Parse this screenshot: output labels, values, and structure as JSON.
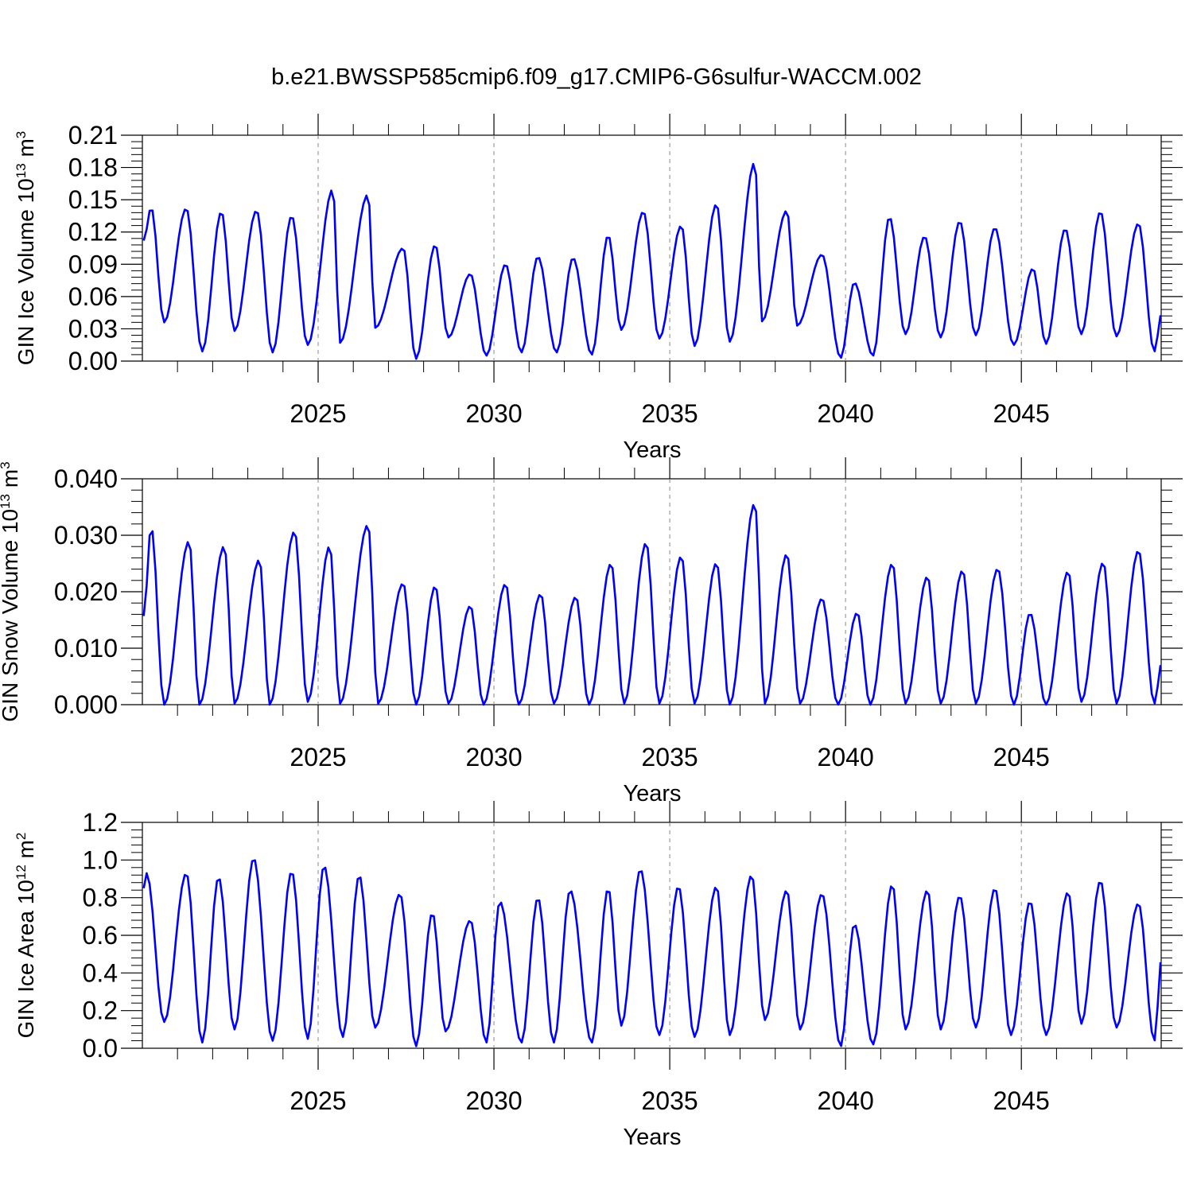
{
  "title": "b.e21.BWSSP585cmip6.f09_g17.CMIP6-G6sulfur-WACCM.002",
  "chart_data": [
    {
      "type": "line",
      "ylabel": "GIN Ice Volume 10",
      "ylabel_sup": "13",
      "ylabel_unit": "m",
      "ylabel_unit_sup": "3",
      "xlabel": "Years",
      "xlim": [
        2020.04,
        2049.0
      ],
      "ylim": [
        0,
        0.21
      ],
      "yticks": [
        "0.00",
        "0.03",
        "0.06",
        "0.09",
        "0.12",
        "0.15",
        "0.18",
        "0.21"
      ],
      "ytick_values": [
        0,
        0.03,
        0.06,
        0.09,
        0.12,
        0.15,
        0.18,
        0.21
      ],
      "xticks": [
        "2025",
        "2030",
        "2035",
        "2040",
        "2045"
      ],
      "xtick_values": [
        2025,
        2030,
        2035,
        2040,
        2045
      ],
      "grid": "vertical dashed at major x ticks",
      "color": "#0000ff",
      "series": [
        {
          "peaks": [
            [
              2020.25,
              0.143
            ],
            [
              2021.25,
              0.142
            ],
            [
              2022.25,
              0.139
            ],
            [
              2023.25,
              0.14
            ],
            [
              2024.25,
              0.135
            ],
            [
              2025.42,
              0.16
            ],
            [
              2026.42,
              0.155
            ],
            [
              2027.42,
              0.105
            ],
            [
              2028.33,
              0.108
            ],
            [
              2029.33,
              0.081
            ],
            [
              2030.33,
              0.09
            ],
            [
              2031.25,
              0.097
            ],
            [
              2032.25,
              0.096
            ],
            [
              2033.25,
              0.117
            ],
            [
              2034.25,
              0.139
            ],
            [
              2035.33,
              0.126
            ],
            [
              2036.33,
              0.146
            ],
            [
              2037.42,
              0.185
            ],
            [
              2038.33,
              0.14
            ],
            [
              2039.33,
              0.099
            ],
            [
              2040.25,
              0.073
            ],
            [
              2041.25,
              0.134
            ],
            [
              2042.25,
              0.116
            ],
            [
              2043.25,
              0.13
            ],
            [
              2044.25,
              0.124
            ],
            [
              2045.33,
              0.086
            ],
            [
              2046.25,
              0.123
            ],
            [
              2047.25,
              0.139
            ],
            [
              2048.33,
              0.128
            ]
          ],
          "troughs": [
            [
              2020.62,
              0.036
            ],
            [
              2021.7,
              0.009
            ],
            [
              2022.62,
              0.028
            ],
            [
              2023.7,
              0.008
            ],
            [
              2024.7,
              0.015
            ],
            [
              2025.62,
              0.017
            ],
            [
              2026.62,
              0.031
            ],
            [
              2027.78,
              0.002
            ],
            [
              2028.7,
              0.022
            ],
            [
              2029.78,
              0.005
            ],
            [
              2030.78,
              0.008
            ],
            [
              2031.78,
              0.008
            ],
            [
              2032.78,
              0.006
            ],
            [
              2033.62,
              0.029
            ],
            [
              2034.7,
              0.021
            ],
            [
              2035.7,
              0.014
            ],
            [
              2036.7,
              0.018
            ],
            [
              2037.62,
              0.037
            ],
            [
              2038.62,
              0.033
            ],
            [
              2039.86,
              0.003
            ],
            [
              2040.78,
              0.005
            ],
            [
              2041.7,
              0.025
            ],
            [
              2042.7,
              0.022
            ],
            [
              2043.7,
              0.024
            ],
            [
              2044.78,
              0.015
            ],
            [
              2045.7,
              0.016
            ],
            [
              2046.7,
              0.025
            ],
            [
              2047.7,
              0.023
            ],
            [
              2048.78,
              0.009
            ]
          ],
          "start": [
            2020.04,
            0.112
          ],
          "end": [
            2049.0,
            0.046
          ]
        }
      ]
    },
    {
      "type": "line",
      "ylabel": "GIN Snow Volume 10",
      "ylabel_sup": "13",
      "ylabel_unit": "m",
      "ylabel_unit_sup": "3",
      "xlabel": "Years",
      "xlim": [
        2020.04,
        2049.0
      ],
      "ylim": [
        0,
        0.04
      ],
      "yticks": [
        "0.000",
        "0.010",
        "0.020",
        "0.030",
        "0.040"
      ],
      "ytick_values": [
        0,
        0.01,
        0.02,
        0.03,
        0.04
      ],
      "xticks": [
        "2025",
        "2030",
        "2035",
        "2040",
        "2045"
      ],
      "xtick_values": [
        2025,
        2030,
        2035,
        2040,
        2045
      ],
      "grid": "vertical dashed at major x ticks",
      "color": "#0000ff",
      "series": [
        {
          "peaks": [
            [
              2020.25,
              0.0316
            ],
            [
              2021.33,
              0.029
            ],
            [
              2022.33,
              0.0281
            ],
            [
              2023.33,
              0.0257
            ],
            [
              2024.33,
              0.0307
            ],
            [
              2025.33,
              0.0281
            ],
            [
              2026.42,
              0.0319
            ],
            [
              2027.42,
              0.0215
            ],
            [
              2028.33,
              0.021
            ],
            [
              2029.33,
              0.0175
            ],
            [
              2030.33,
              0.0214
            ],
            [
              2031.33,
              0.0196
            ],
            [
              2032.33,
              0.0191
            ],
            [
              2033.33,
              0.025
            ],
            [
              2034.33,
              0.0287
            ],
            [
              2035.33,
              0.0263
            ],
            [
              2036.33,
              0.0251
            ],
            [
              2037.42,
              0.0357
            ],
            [
              2038.33,
              0.0267
            ],
            [
              2039.33,
              0.0188
            ],
            [
              2040.33,
              0.0163
            ],
            [
              2041.33,
              0.025
            ],
            [
              2042.33,
              0.0227
            ],
            [
              2043.33,
              0.0238
            ],
            [
              2044.33,
              0.0241
            ],
            [
              2045.25,
              0.0162
            ],
            [
              2046.33,
              0.0236
            ],
            [
              2047.33,
              0.0252
            ],
            [
              2048.33,
              0.0273
            ]
          ],
          "troughs": [
            [
              2020.62,
              0.0
            ],
            [
              2021.62,
              0.0
            ],
            [
              2022.62,
              0.0002
            ],
            [
              2023.62,
              0.0
            ],
            [
              2024.7,
              0.0005
            ],
            [
              2025.62,
              0.0002
            ],
            [
              2026.7,
              0.0002
            ],
            [
              2027.78,
              0.0
            ],
            [
              2028.7,
              0.0002
            ],
            [
              2029.7,
              0.0
            ],
            [
              2030.7,
              0.0
            ],
            [
              2031.7,
              0.0002
            ],
            [
              2032.7,
              0.0
            ],
            [
              2033.7,
              0.0002
            ],
            [
              2034.7,
              0.0002
            ],
            [
              2035.7,
              0.0002
            ],
            [
              2036.7,
              0.0
            ],
            [
              2037.7,
              0.0002
            ],
            [
              2038.7,
              0.0002
            ],
            [
              2039.78,
              0.0
            ],
            [
              2040.7,
              0.0
            ],
            [
              2041.7,
              0.0002
            ],
            [
              2042.7,
              0.0002
            ],
            [
              2043.7,
              0.0002
            ],
            [
              2044.78,
              0.0
            ],
            [
              2045.7,
              0.0
            ],
            [
              2046.7,
              0.0005
            ],
            [
              2047.7,
              0.0002
            ],
            [
              2048.78,
              0.0002
            ]
          ],
          "start": [
            2020.04,
            0.0157
          ],
          "end": [
            2049.0,
            0.0077
          ]
        }
      ]
    },
    {
      "type": "line",
      "ylabel": "GIN Ice Area 10",
      "ylabel_sup": "12",
      "ylabel_unit": "m",
      "ylabel_unit_sup": "2",
      "xlabel": "Years",
      "xlim": [
        2020.04,
        2049.0
      ],
      "ylim": [
        0,
        1.2
      ],
      "yticks": [
        "0.0",
        "0.2",
        "0.4",
        "0.6",
        "0.8",
        "1.0",
        "1.2"
      ],
      "ytick_values": [
        0,
        0.2,
        0.4,
        0.6,
        0.8,
        1.0,
        1.2
      ],
      "xticks": [
        "2025",
        "2030",
        "2035",
        "2040",
        "2045"
      ],
      "xtick_values": [
        2025,
        2030,
        2035,
        2040,
        2045
      ],
      "grid": "vertical dashed at major x ticks",
      "color": "#0000ff",
      "series": [
        {
          "peaks": [
            [
              2020.12,
              0.93
            ],
            [
              2021.25,
              0.93
            ],
            [
              2022.17,
              0.91
            ],
            [
              2023.17,
              1.01
            ],
            [
              2024.25,
              0.94
            ],
            [
              2025.17,
              0.97
            ],
            [
              2026.17,
              0.92
            ],
            [
              2027.33,
              0.82
            ],
            [
              2028.25,
              0.72
            ],
            [
              2029.33,
              0.68
            ],
            [
              2030.17,
              0.78
            ],
            [
              2031.25,
              0.8
            ],
            [
              2032.17,
              0.84
            ],
            [
              2033.25,
              0.85
            ],
            [
              2034.17,
              0.95
            ],
            [
              2035.25,
              0.86
            ],
            [
              2036.33,
              0.86
            ],
            [
              2037.33,
              0.92
            ],
            [
              2038.33,
              0.84
            ],
            [
              2039.33,
              0.82
            ],
            [
              2040.25,
              0.66
            ],
            [
              2041.33,
              0.87
            ],
            [
              2042.33,
              0.84
            ],
            [
              2043.25,
              0.81
            ],
            [
              2044.25,
              0.85
            ],
            [
              2045.25,
              0.78
            ],
            [
              2046.33,
              0.83
            ],
            [
              2047.25,
              0.89
            ],
            [
              2048.33,
              0.77
            ]
          ],
          "troughs": [
            [
              2020.62,
              0.14
            ],
            [
              2021.7,
              0.03
            ],
            [
              2022.62,
              0.1
            ],
            [
              2023.7,
              0.04
            ],
            [
              2024.7,
              0.05
            ],
            [
              2025.7,
              0.06
            ],
            [
              2026.62,
              0.11
            ],
            [
              2027.78,
              0.01
            ],
            [
              2028.62,
              0.09
            ],
            [
              2029.78,
              0.03
            ],
            [
              2030.78,
              0.03
            ],
            [
              2031.7,
              0.03
            ],
            [
              2032.78,
              0.03
            ],
            [
              2033.62,
              0.12
            ],
            [
              2034.7,
              0.07
            ],
            [
              2035.7,
              0.06
            ],
            [
              2036.7,
              0.07
            ],
            [
              2037.7,
              0.15
            ],
            [
              2038.7,
              0.1
            ],
            [
              2039.86,
              0.01
            ],
            [
              2040.78,
              0.02
            ],
            [
              2041.7,
              0.1
            ],
            [
              2042.7,
              0.1
            ],
            [
              2043.7,
              0.11
            ],
            [
              2044.7,
              0.07
            ],
            [
              2045.7,
              0.07
            ],
            [
              2046.7,
              0.13
            ],
            [
              2047.7,
              0.11
            ],
            [
              2048.78,
              0.04
            ]
          ],
          "start": [
            2020.04,
            0.85
          ],
          "end": [
            2049.0,
            0.5
          ]
        }
      ]
    }
  ]
}
